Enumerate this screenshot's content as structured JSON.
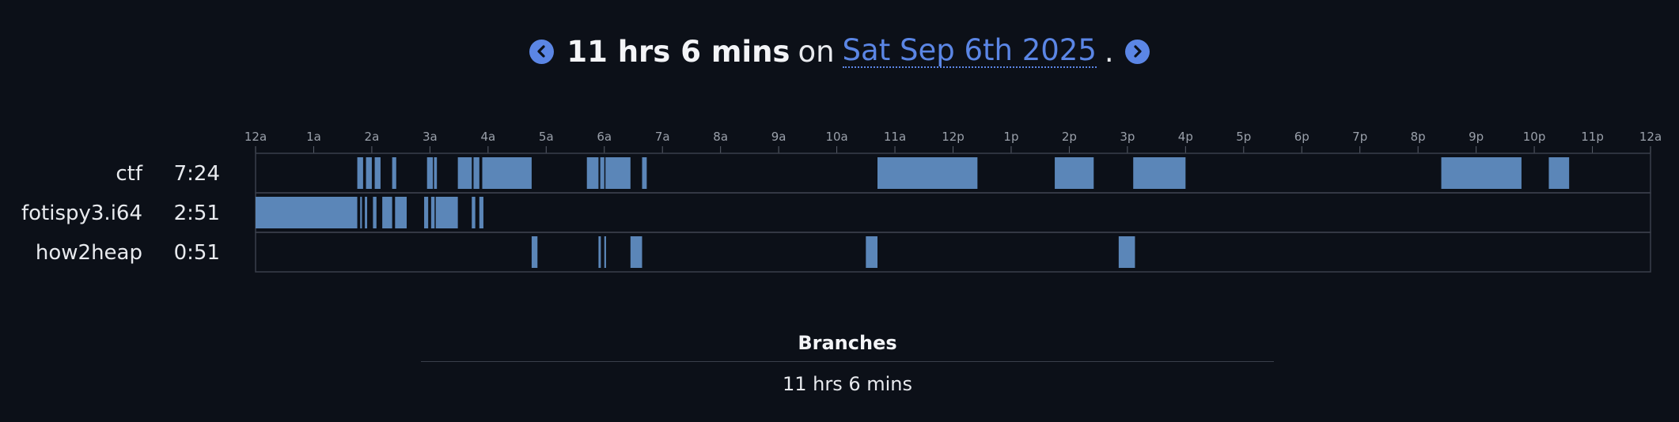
{
  "header": {
    "total": "11 hrs 6 mins",
    "on": "on",
    "date": "Sat Sep 6th 2025",
    "period": ".",
    "prev_icon": "chevron-left-icon",
    "next_icon": "chevron-right-icon"
  },
  "branches": {
    "title": "Branches",
    "total": "11 hrs 6 mins"
  },
  "colors": {
    "background": "#0c1018",
    "bar": "#5b86b8",
    "accent": "#5b86e5",
    "grid": "#3a3f4a"
  },
  "chart_data": {
    "type": "timeline",
    "x_unit": "hours",
    "xlim": [
      0,
      24
    ],
    "ticks": [
      "12a",
      "1a",
      "2a",
      "3a",
      "4a",
      "5a",
      "6a",
      "7a",
      "8a",
      "9a",
      "10a",
      "11a",
      "12p",
      "1p",
      "2p",
      "3p",
      "4p",
      "5p",
      "6p",
      "7p",
      "8p",
      "9p",
      "10p",
      "11p",
      "12a"
    ],
    "rows": [
      {
        "name": "ctf",
        "duration": "7:24",
        "segments": [
          [
            1.75,
            1.85
          ],
          [
            1.9,
            2.0
          ],
          [
            2.05,
            2.15
          ],
          [
            2.35,
            2.42
          ],
          [
            2.95,
            3.05
          ],
          [
            3.07,
            3.12
          ],
          [
            3.48,
            3.72
          ],
          [
            3.75,
            3.85
          ],
          [
            3.9,
            4.75
          ],
          [
            5.7,
            5.9
          ],
          [
            5.93,
            6.0
          ],
          [
            6.02,
            6.45
          ],
          [
            6.65,
            6.73
          ],
          [
            10.7,
            12.42
          ],
          [
            13.75,
            14.42
          ],
          [
            15.1,
            16.0
          ],
          [
            20.4,
            21.78
          ],
          [
            22.25,
            22.6
          ]
        ]
      },
      {
        "name": "fotispy3.i64",
        "duration": "2:51",
        "segments": [
          [
            0.0,
            1.75
          ],
          [
            1.8,
            1.83
          ],
          [
            1.88,
            1.92
          ],
          [
            2.02,
            2.08
          ],
          [
            2.18,
            2.35
          ],
          [
            2.4,
            2.6
          ],
          [
            2.9,
            2.97
          ],
          [
            3.02,
            3.08
          ],
          [
            3.1,
            3.48
          ],
          [
            3.72,
            3.78
          ],
          [
            3.85,
            3.92
          ]
        ]
      },
      {
        "name": "how2heap",
        "duration": "0:51",
        "segments": [
          [
            4.75,
            4.85
          ],
          [
            5.9,
            5.94
          ],
          [
            6.0,
            6.03
          ],
          [
            6.45,
            6.65
          ],
          [
            10.5,
            10.7
          ],
          [
            14.85,
            15.13
          ]
        ]
      }
    ]
  }
}
